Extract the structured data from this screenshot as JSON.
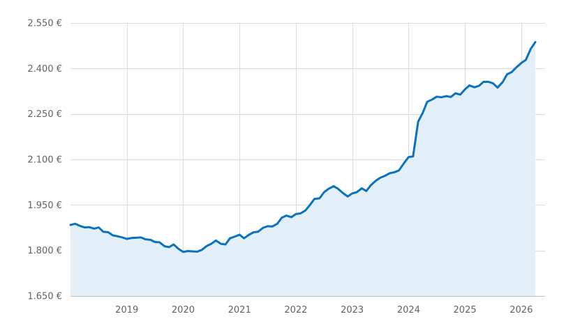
{
  "chart_data": {
    "type": "area",
    "title": "",
    "xlabel": "",
    "ylabel": "",
    "currency_suffix": " €",
    "ylim": [
      1650,
      2550
    ],
    "xlim": [
      2018.0,
      2026.25
    ],
    "y_ticks": [
      1650,
      1800,
      1950,
      2100,
      2250,
      2400,
      2550
    ],
    "y_tick_labels": [
      "1.650 €",
      "1.800 €",
      "1.950 €",
      "2.100 €",
      "2.250 €",
      "2.400 €",
      "2.550 €"
    ],
    "x_ticks": [
      2019,
      2020,
      2021,
      2022,
      2023,
      2024,
      2025,
      2026
    ],
    "x_tick_labels": [
      "2019",
      "2020",
      "2021",
      "2022",
      "2023",
      "2024",
      "2025",
      "2026"
    ],
    "grid": true,
    "line_color": "#0b72bd",
    "fill_color": "#e3f0f9",
    "series": [
      {
        "x": [
          2018.0,
          2018.08,
          2018.17,
          2018.25,
          2018.33,
          2018.42,
          2018.5,
          2018.58,
          2018.67,
          2018.75,
          2018.83,
          2018.92,
          2019.0,
          2019.08,
          2019.17,
          2019.25,
          2019.33,
          2019.42,
          2019.5,
          2019.58,
          2019.67,
          2019.75,
          2019.83,
          2019.92,
          2020.0,
          2020.08,
          2020.17,
          2020.25,
          2020.33,
          2020.42,
          2020.5,
          2020.58,
          2020.67,
          2020.75,
          2020.83,
          2020.92,
          2021.0,
          2021.08,
          2021.17,
          2021.25,
          2021.33,
          2021.42,
          2021.5,
          2021.58,
          2021.67,
          2021.75,
          2021.83,
          2021.92,
          2022.0,
          2022.08,
          2022.17,
          2022.25,
          2022.33,
          2022.42,
          2022.5,
          2022.58,
          2022.67,
          2022.75,
          2022.83,
          2022.92,
          2023.0,
          2023.08,
          2023.17,
          2023.25,
          2023.33,
          2023.42,
          2023.5,
          2023.58,
          2023.67,
          2023.75,
          2023.83,
          2023.92,
          2024.0,
          2024.08,
          2024.17,
          2024.25,
          2024.33,
          2024.42,
          2024.5,
          2024.58,
          2024.67,
          2024.75,
          2024.83,
          2024.92,
          2025.0,
          2025.08,
          2025.17,
          2025.25,
          2025.33,
          2025.42,
          2025.5,
          2025.58,
          2025.67,
          2025.75,
          2025.83,
          2025.92,
          2026.0,
          2026.08,
          2026.17,
          2026.25
        ],
        "values": [
          1884,
          1888,
          1881,
          1876,
          1877,
          1872,
          1876,
          1862,
          1860,
          1850,
          1847,
          1843,
          1838,
          1841,
          1842,
          1843,
          1837,
          1835,
          1828,
          1827,
          1814,
          1811,
          1820,
          1805,
          1795,
          1798,
          1797,
          1796,
          1802,
          1815,
          1822,
          1833,
          1822,
          1820,
          1840,
          1846,
          1852,
          1840,
          1852,
          1860,
          1862,
          1875,
          1880,
          1879,
          1888,
          1908,
          1915,
          1910,
          1920,
          1922,
          1932,
          1950,
          1970,
          1972,
          1992,
          2003,
          2012,
          2003,
          1990,
          1978,
          1988,
          1992,
          2005,
          1996,
          2015,
          2030,
          2040,
          2046,
          2055,
          2058,
          2064,
          2088,
          2108,
          2110,
          2225,
          2253,
          2290,
          2298,
          2307,
          2305,
          2309,
          2306,
          2318,
          2314,
          2331,
          2344,
          2338,
          2343,
          2356,
          2356,
          2351,
          2337,
          2355,
          2381,
          2388,
          2405,
          2418,
          2428,
          2465,
          2487
        ]
      }
    ]
  }
}
